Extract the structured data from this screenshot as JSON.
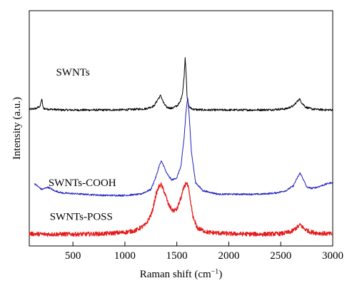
{
  "chart_data": {
    "type": "line",
    "xlabel": "Raman shift (cm",
    "xlabel_sup": "−1",
    "xlabel_close": ")",
    "ylabel": "Intensity (a.u.)",
    "xlim": [
      80,
      3000
    ],
    "ylim": [
      0,
      100
    ],
    "x_ticks": [
      {
        "value": 500,
        "label": "500"
      },
      {
        "value": 1000,
        "label": "1000"
      },
      {
        "value": 1500,
        "label": "1500"
      },
      {
        "value": 2000,
        "label": "2000"
      },
      {
        "value": 2500,
        "label": "2500"
      },
      {
        "value": 3000,
        "label": "3000"
      }
    ],
    "y_ticks_shown": false,
    "grid": false,
    "legend": "none",
    "series": [
      {
        "name": "SWNTs",
        "color": "#000000",
        "label_at": [
          500,
          72.5
        ],
        "x": [
          80,
          150,
          185,
          200,
          215,
          250,
          400,
          600,
          800,
          1000,
          1200,
          1280,
          1320,
          1345,
          1370,
          1400,
          1450,
          1500,
          1530,
          1555,
          1570,
          1580,
          1590,
          1600,
          1620,
          1650,
          1700,
          1800,
          2000,
          2200,
          2400,
          2550,
          2620,
          2660,
          2680,
          2700,
          2740,
          2800,
          2900,
          3000
        ],
        "y": [
          58.0,
          58.5,
          59.5,
          62.5,
          58.5,
          58.2,
          57.8,
          57.8,
          57.8,
          57.9,
          58.3,
          59.5,
          62.5,
          64.0,
          61.0,
          59.0,
          58.5,
          59.5,
          61.0,
          65.0,
          72.0,
          80.0,
          73.0,
          62.0,
          59.0,
          58.2,
          57.9,
          57.8,
          57.8,
          57.8,
          57.9,
          58.3,
          59.5,
          61.5,
          62.5,
          61.0,
          59.0,
          58.2,
          57.9,
          57.8
        ]
      },
      {
        "name": "SWNTs-COOH",
        "color": "#1f1fbf",
        "label_at": [
          590,
          25.5
        ],
        "x": [
          130,
          200,
          260,
          320,
          400,
          600,
          800,
          1000,
          1150,
          1250,
          1300,
          1330,
          1350,
          1370,
          1400,
          1450,
          1500,
          1540,
          1570,
          1590,
          1605,
          1620,
          1640,
          1680,
          1750,
          1900,
          2100,
          2300,
          2450,
          2550,
          2620,
          2660,
          2685,
          2710,
          2750,
          2800,
          2850,
          2950,
          3000
        ],
        "y": [
          26.5,
          24.0,
          25.0,
          23.5,
          22.5,
          22.0,
          21.5,
          21.5,
          22.0,
          24.0,
          29.5,
          34.0,
          36.0,
          34.5,
          31.0,
          28.0,
          29.0,
          34.0,
          46.0,
          58.0,
          63.0,
          55.0,
          40.0,
          27.0,
          23.5,
          22.0,
          22.0,
          22.0,
          22.5,
          23.5,
          25.5,
          29.0,
          31.0,
          29.0,
          25.0,
          24.5,
          25.0,
          26.5,
          27.0
        ]
      },
      {
        "name": "SWNTs-POSS",
        "color": "#e61a1a",
        "label_at": [
          580,
          11.0
        ],
        "x": [
          80,
          200,
          400,
          600,
          800,
          1000,
          1100,
          1200,
          1260,
          1300,
          1330,
          1350,
          1380,
          1420,
          1460,
          1500,
          1540,
          1570,
          1590,
          1610,
          1630,
          1660,
          1700,
          1800,
          2000,
          2300,
          2500,
          2600,
          2660,
          2690,
          2720,
          2780,
          2850,
          2950,
          3000
        ],
        "y": [
          5.2,
          5.0,
          5.0,
          5.0,
          5.2,
          5.8,
          6.5,
          9.0,
          14.0,
          22.0,
          25.5,
          26.0,
          23.0,
          17.5,
          15.0,
          15.5,
          20.5,
          25.0,
          27.0,
          25.0,
          19.0,
          11.5,
          7.5,
          5.8,
          5.2,
          5.0,
          5.2,
          6.0,
          8.0,
          9.0,
          7.5,
          6.0,
          5.5,
          5.2,
          5.0
        ]
      }
    ]
  }
}
